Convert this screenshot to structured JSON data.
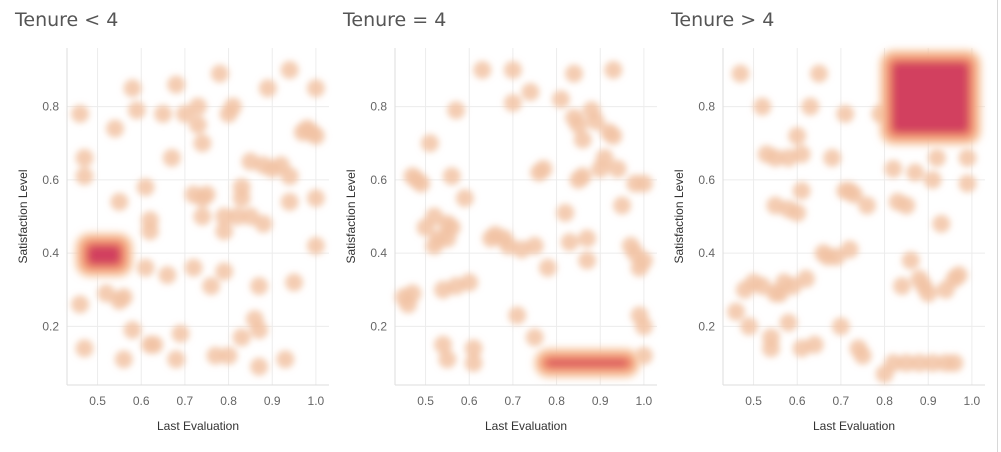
{
  "chart_data": [
    {
      "type": "scatter",
      "title": "Tenure < 4",
      "xlabel": "Last Evaluation",
      "ylabel": "Satisfaction Level",
      "xlim": [
        0.43,
        1.03
      ],
      "ylim": [
        0.04,
        0.96
      ],
      "xticks": [
        "0.5",
        "0.6",
        "0.7",
        "0.8",
        "0.9",
        "1.0"
      ],
      "yticks": [
        "0.2",
        "0.4",
        "0.6",
        "0.8"
      ],
      "grid": true,
      "density_cluster": {
        "x": [
          0.47,
          0.56
        ],
        "y": [
          0.36,
          0.43
        ],
        "points": 140
      },
      "points": [
        [
          0.46,
          0.78
        ],
        [
          0.47,
          0.66
        ],
        [
          0.47,
          0.61
        ],
        [
          0.46,
          0.26
        ],
        [
          0.47,
          0.14
        ],
        [
          0.52,
          0.29
        ],
        [
          0.54,
          0.74
        ],
        [
          0.55,
          0.54
        ],
        [
          0.55,
          0.27
        ],
        [
          0.56,
          0.28
        ],
        [
          0.56,
          0.11
        ],
        [
          0.58,
          0.85
        ],
        [
          0.59,
          0.79
        ],
        [
          0.58,
          0.19
        ],
        [
          0.61,
          0.58
        ],
        [
          0.62,
          0.49
        ],
        [
          0.62,
          0.46
        ],
        [
          0.61,
          0.36
        ],
        [
          0.62,
          0.15
        ],
        [
          0.63,
          0.15
        ],
        [
          0.65,
          0.78
        ],
        [
          0.66,
          0.34
        ],
        [
          0.67,
          0.66
        ],
        [
          0.68,
          0.86
        ],
        [
          0.68,
          0.11
        ],
        [
          0.69,
          0.18
        ],
        [
          0.7,
          0.78
        ],
        [
          0.72,
          0.56
        ],
        [
          0.72,
          0.36
        ],
        [
          0.73,
          0.8
        ],
        [
          0.73,
          0.75
        ],
        [
          0.74,
          0.7
        ],
        [
          0.74,
          0.5
        ],
        [
          0.74,
          0.55
        ],
        [
          0.75,
          0.56
        ],
        [
          0.76,
          0.31
        ],
        [
          0.77,
          0.12
        ],
        [
          0.78,
          0.89
        ],
        [
          0.79,
          0.5
        ],
        [
          0.79,
          0.46
        ],
        [
          0.79,
          0.35
        ],
        [
          0.8,
          0.78
        ],
        [
          0.81,
          0.8
        ],
        [
          0.8,
          0.12
        ],
        [
          0.82,
          0.5
        ],
        [
          0.83,
          0.58
        ],
        [
          0.83,
          0.55
        ],
        [
          0.83,
          0.17
        ],
        [
          0.85,
          0.65
        ],
        [
          0.85,
          0.5
        ],
        [
          0.86,
          0.22
        ],
        [
          0.87,
          0.31
        ],
        [
          0.87,
          0.19
        ],
        [
          0.87,
          0.09
        ],
        [
          0.88,
          0.64
        ],
        [
          0.88,
          0.48
        ],
        [
          0.89,
          0.85
        ],
        [
          0.9,
          0.63
        ],
        [
          0.92,
          0.64
        ],
        [
          0.93,
          0.11
        ],
        [
          0.94,
          0.9
        ],
        [
          0.94,
          0.61
        ],
        [
          0.94,
          0.54
        ],
        [
          0.95,
          0.32
        ],
        [
          0.97,
          0.73
        ],
        [
          0.98,
          0.74
        ],
        [
          0.99,
          0.73
        ],
        [
          1.0,
          0.85
        ],
        [
          1.0,
          0.72
        ],
        [
          1.0,
          0.55
        ],
        [
          1.0,
          0.42
        ]
      ]
    },
    {
      "type": "scatter",
      "title": "Tenure = 4",
      "xlabel": "Last Evaluation",
      "ylabel": "Satisfaction Level",
      "xlim": [
        0.43,
        1.03
      ],
      "ylim": [
        0.04,
        0.96
      ],
      "xticks": [
        "0.5",
        "0.6",
        "0.7",
        "0.8",
        "0.9",
        "1.0"
      ],
      "yticks": [
        "0.2",
        "0.4",
        "0.6",
        "0.8"
      ],
      "grid": true,
      "density_cluster": {
        "x": [
          0.77,
          0.97
        ],
        "y": [
          0.085,
          0.115
        ],
        "points": 120
      },
      "points": [
        [
          0.45,
          0.28
        ],
        [
          0.46,
          0.26
        ],
        [
          0.47,
          0.61
        ],
        [
          0.47,
          0.29
        ],
        [
          0.48,
          0.6
        ],
        [
          0.49,
          0.59
        ],
        [
          0.5,
          0.47
        ],
        [
          0.51,
          0.7
        ],
        [
          0.52,
          0.5
        ],
        [
          0.52,
          0.42
        ],
        [
          0.53,
          0.44
        ],
        [
          0.54,
          0.15
        ],
        [
          0.54,
          0.3
        ],
        [
          0.55,
          0.48
        ],
        [
          0.55,
          0.44
        ],
        [
          0.55,
          0.11
        ],
        [
          0.56,
          0.61
        ],
        [
          0.56,
          0.47
        ],
        [
          0.57,
          0.79
        ],
        [
          0.57,
          0.31
        ],
        [
          0.59,
          0.55
        ],
        [
          0.6,
          0.32
        ],
        [
          0.61,
          0.14
        ],
        [
          0.61,
          0.1
        ],
        [
          0.63,
          0.9
        ],
        [
          0.65,
          0.44
        ],
        [
          0.66,
          0.45
        ],
        [
          0.68,
          0.44
        ],
        [
          0.69,
          0.42
        ],
        [
          0.7,
          0.9
        ],
        [
          0.7,
          0.81
        ],
        [
          0.71,
          0.23
        ],
        [
          0.72,
          0.41
        ],
        [
          0.74,
          0.84
        ],
        [
          0.75,
          0.42
        ],
        [
          0.75,
          0.17
        ],
        [
          0.76,
          0.62
        ],
        [
          0.77,
          0.63
        ],
        [
          0.78,
          0.36
        ],
        [
          0.81,
          0.82
        ],
        [
          0.82,
          0.51
        ],
        [
          0.83,
          0.43
        ],
        [
          0.84,
          0.89
        ],
        [
          0.84,
          0.77
        ],
        [
          0.85,
          0.75
        ],
        [
          0.85,
          0.6
        ],
        [
          0.86,
          0.71
        ],
        [
          0.86,
          0.61
        ],
        [
          0.87,
          0.44
        ],
        [
          0.87,
          0.38
        ],
        [
          0.88,
          0.79
        ],
        [
          0.89,
          0.76
        ],
        [
          0.9,
          0.63
        ],
        [
          0.91,
          0.66
        ],
        [
          0.92,
          0.73
        ],
        [
          0.93,
          0.72
        ],
        [
          0.94,
          0.63
        ],
        [
          0.93,
          0.9
        ],
        [
          0.95,
          0.53
        ],
        [
          0.97,
          0.42
        ],
        [
          0.98,
          0.59
        ],
        [
          0.98,
          0.4
        ],
        [
          0.99,
          0.36
        ],
        [
          0.99,
          0.23
        ],
        [
          1.0,
          0.59
        ],
        [
          1.0,
          0.38
        ],
        [
          1.0,
          0.2
        ],
        [
          1.0,
          0.12
        ]
      ]
    },
    {
      "type": "scatter",
      "title": "Tenure > 4",
      "xlabel": "Last Evaluation",
      "ylabel": "Satisfaction Level",
      "xlim": [
        0.43,
        1.03
      ],
      "ylim": [
        0.04,
        0.96
      ],
      "xticks": [
        "0.5",
        "0.6",
        "0.7",
        "0.8",
        "0.9",
        "1.0"
      ],
      "yticks": [
        "0.2",
        "0.4",
        "0.6",
        "0.8"
      ],
      "grid": true,
      "density_cluster": {
        "x": [
          0.81,
          1.0
        ],
        "y": [
          0.72,
          0.93
        ],
        "points": 260
      },
      "points": [
        [
          0.46,
          0.24
        ],
        [
          0.47,
          0.89
        ],
        [
          0.48,
          0.3
        ],
        [
          0.49,
          0.2
        ],
        [
          0.5,
          0.32
        ],
        [
          0.52,
          0.8
        ],
        [
          0.52,
          0.31
        ],
        [
          0.53,
          0.67
        ],
        [
          0.54,
          0.17
        ],
        [
          0.54,
          0.14
        ],
        [
          0.55,
          0.66
        ],
        [
          0.55,
          0.53
        ],
        [
          0.55,
          0.29
        ],
        [
          0.56,
          0.29
        ],
        [
          0.57,
          0.32
        ],
        [
          0.58,
          0.66
        ],
        [
          0.58,
          0.52
        ],
        [
          0.58,
          0.21
        ],
        [
          0.59,
          0.31
        ],
        [
          0.6,
          0.51
        ],
        [
          0.6,
          0.72
        ],
        [
          0.61,
          0.67
        ],
        [
          0.61,
          0.57
        ],
        [
          0.61,
          0.14
        ],
        [
          0.62,
          0.33
        ],
        [
          0.63,
          0.8
        ],
        [
          0.64,
          0.15
        ],
        [
          0.65,
          0.89
        ],
        [
          0.66,
          0.4
        ],
        [
          0.67,
          0.39
        ],
        [
          0.68,
          0.66
        ],
        [
          0.69,
          0.39
        ],
        [
          0.7,
          0.2
        ],
        [
          0.71,
          0.78
        ],
        [
          0.71,
          0.57
        ],
        [
          0.72,
          0.57
        ],
        [
          0.72,
          0.41
        ],
        [
          0.73,
          0.56
        ],
        [
          0.74,
          0.14
        ],
        [
          0.75,
          0.12
        ],
        [
          0.76,
          0.53
        ],
        [
          0.79,
          0.78
        ],
        [
          0.8,
          0.07
        ],
        [
          0.82,
          0.63
        ],
        [
          0.83,
          0.54
        ],
        [
          0.84,
          0.31
        ],
        [
          0.85,
          0.53
        ],
        [
          0.86,
          0.38
        ],
        [
          0.87,
          0.62
        ],
        [
          0.88,
          0.33
        ],
        [
          0.89,
          0.31
        ],
        [
          0.9,
          0.29
        ],
        [
          0.91,
          0.6
        ],
        [
          0.92,
          0.66
        ],
        [
          0.93,
          0.48
        ],
        [
          0.94,
          0.3
        ],
        [
          0.96,
          0.33
        ],
        [
          0.97,
          0.34
        ],
        [
          0.99,
          0.66
        ],
        [
          0.99,
          0.59
        ],
        [
          0.82,
          0.1
        ],
        [
          0.85,
          0.1
        ],
        [
          0.88,
          0.1
        ],
        [
          0.91,
          0.1
        ],
        [
          0.94,
          0.1
        ],
        [
          0.96,
          0.1
        ]
      ]
    }
  ],
  "style": {
    "marker_color": "#f2c3a4",
    "cluster_inner_color": "#d2405e",
    "cluster_mid_color": "#f08a6a",
    "cluster_outer_color": "#f7c59e",
    "grid_color": "#ececec",
    "axis_color": "#dddddd"
  }
}
